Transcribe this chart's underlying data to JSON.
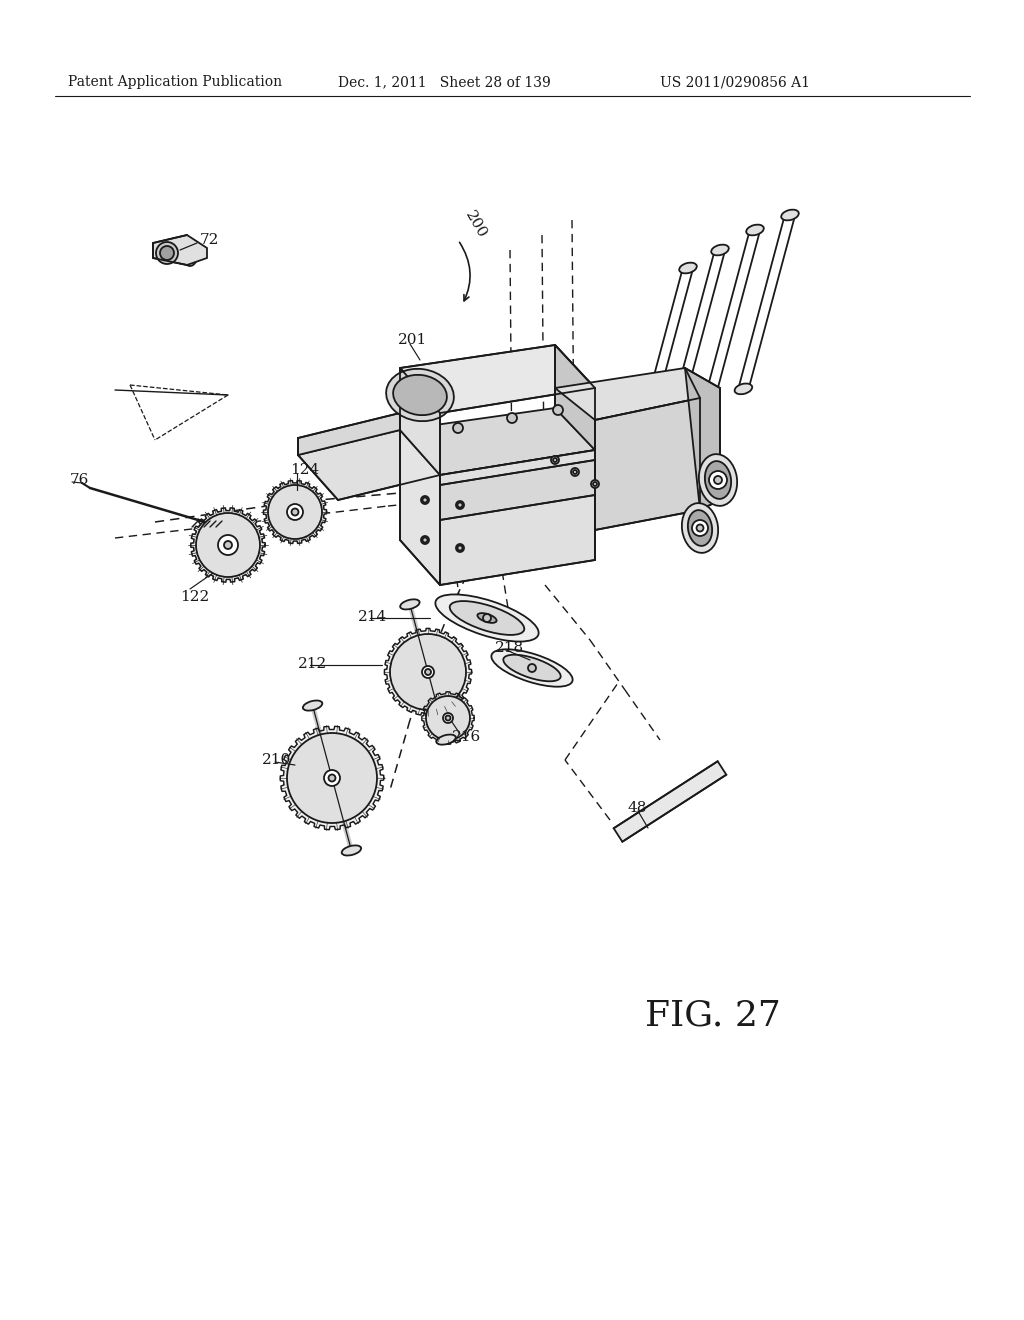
{
  "bg_color": "#ffffff",
  "lc": "#1a1a1a",
  "fc_light": "#f0f0f0",
  "fc_mid": "#e0e0e0",
  "fc_dark": "#c8c8c8",
  "header_left": "Patent Application Publication",
  "header_mid": "Dec. 1, 2011   Sheet 28 of 139",
  "header_right": "US 2011/0290856 A1",
  "fig_label": "FIG. 27",
  "lw": 1.3
}
